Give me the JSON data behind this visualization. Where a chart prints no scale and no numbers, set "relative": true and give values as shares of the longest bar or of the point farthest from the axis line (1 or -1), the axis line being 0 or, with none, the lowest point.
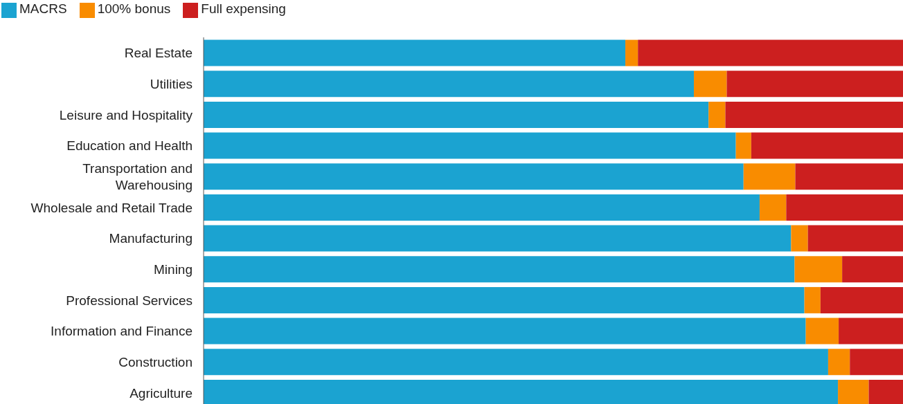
{
  "chart_data": {
    "type": "bar",
    "orientation": "horizontal",
    "stacked": true,
    "relative": true,
    "legend": "top left",
    "categories": [
      "Real Estate",
      "Utilities",
      "Leisure and Hospitality",
      "Education and Health",
      "Transportation and Warehousing",
      "Wholesale and Retail Trade",
      "Manufacturing",
      "Mining",
      "Professional Services",
      "Information and Finance",
      "Construction",
      "Agriculture"
    ],
    "series": [
      {
        "name": "MACRS",
        "color": "#1ba3d1",
        "values": [
          0.603,
          0.701,
          0.722,
          0.761,
          0.772,
          0.795,
          0.84,
          0.845,
          0.859,
          0.861,
          0.893,
          0.907
        ]
      },
      {
        "name": "100% bonus",
        "color": "#f98c00",
        "values": [
          0.018,
          0.047,
          0.024,
          0.022,
          0.074,
          0.038,
          0.024,
          0.068,
          0.023,
          0.047,
          0.031,
          0.044
        ]
      },
      {
        "name": "Full expensing",
        "color": "#cc1f1f",
        "values": [
          0.379,
          0.252,
          0.254,
          0.217,
          0.154,
          0.167,
          0.136,
          0.087,
          0.118,
          0.092,
          0.076,
          0.049
        ]
      }
    ]
  }
}
